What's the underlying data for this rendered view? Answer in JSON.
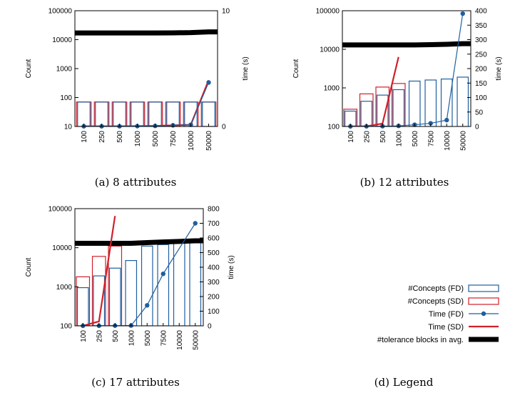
{
  "colors": {
    "fd": "#1f5fa0",
    "sd": "#d0202a",
    "tolerance": "#000000"
  },
  "legend": {
    "caption": "(d) Legend",
    "items": [
      {
        "label": "#Concepts (FD)",
        "kind": "bar-fd"
      },
      {
        "label": "#Concepts (SD)",
        "kind": "bar-sd"
      },
      {
        "label": "Time (FD)",
        "kind": "line-fd"
      },
      {
        "label": "Time (SD)",
        "kind": "line-sd"
      },
      {
        "label": "#tolerance blocks in avg.",
        "kind": "thick"
      }
    ]
  },
  "chart_data": [
    {
      "type": "bar",
      "caption": "(a) 8 attributes",
      "categories": [
        "100",
        "250",
        "500",
        "1000",
        "5000",
        "7500",
        "10000",
        "50000"
      ],
      "ylabel": "Count",
      "y_scale": "log",
      "ylim": [
        10,
        100000
      ],
      "y_ticks": [
        "10",
        "100",
        "1000",
        "10000",
        "100000"
      ],
      "y2label": "time (s)",
      "y2lim": [
        0,
        10
      ],
      "y2_ticks": [
        "0",
        "10"
      ],
      "series": [
        {
          "name": "#Concepts (FD)",
          "axis": "left",
          "values": [
            70,
            70,
            70,
            70,
            70,
            70,
            70,
            70
          ]
        },
        {
          "name": "#Concepts (SD)",
          "axis": "left",
          "values": [
            70,
            70,
            70,
            70,
            70,
            70,
            70,
            70
          ]
        },
        {
          "name": "Time (FD)",
          "axis": "right",
          "values": [
            0.02,
            0.02,
            0.02,
            0.03,
            0.05,
            0.1,
            0.15,
            3.8
          ]
        },
        {
          "name": "Time (SD)",
          "axis": "right",
          "values": [
            0.02,
            0.02,
            0.02,
            0.03,
            0.05,
            0.1,
            0.15,
            4.0
          ]
        },
        {
          "name": "#tolerance blocks in avg.",
          "axis": "left",
          "values": [
            17000,
            17000,
            17000,
            17000,
            17000,
            17200,
            17500,
            18500
          ]
        }
      ]
    },
    {
      "type": "bar",
      "caption": "(b) 12 attributes",
      "categories": [
        "100",
        "250",
        "500",
        "1000",
        "5000",
        "7500",
        "10000",
        "50000"
      ],
      "ylabel": "Count",
      "y_scale": "log",
      "ylim": [
        100,
        100000
      ],
      "y_ticks": [
        "100",
        "1000",
        "10000",
        "100000"
      ],
      "y2label": "time (s)",
      "y2lim": [
        0,
        400
      ],
      "y2_ticks": [
        "0",
        "50",
        "100",
        "150",
        "200",
        "250",
        "300",
        "350",
        "400"
      ],
      "series": [
        {
          "name": "#Concepts (FD)",
          "axis": "left",
          "values": [
            250,
            450,
            650,
            900,
            1500,
            1600,
            1700,
            1900
          ]
        },
        {
          "name": "#Concepts (SD)",
          "axis": "left",
          "values": [
            280,
            700,
            1050,
            1300,
            null,
            null,
            null,
            null
          ]
        },
        {
          "name": "Time (FD)",
          "axis": "right",
          "values": [
            0.3,
            0.5,
            1,
            2,
            6,
            11,
            22,
            390
          ]
        },
        {
          "name": "Time (SD)",
          "axis": "right",
          "values": [
            0.3,
            0.8,
            10,
            240,
            null,
            null,
            null,
            null
          ]
        },
        {
          "name": "#tolerance blocks in avg.",
          "axis": "left",
          "values": [
            13000,
            13000,
            13000,
            13000,
            13000,
            13200,
            13500,
            14000
          ]
        }
      ]
    },
    {
      "type": "bar",
      "caption": "(c) 17 attributes",
      "categories": [
        "100",
        "250",
        "500",
        "1000",
        "5000",
        "7500",
        "10000",
        "50000"
      ],
      "ylabel": "Count",
      "y_scale": "log",
      "ylim": [
        100,
        100000
      ],
      "y_ticks": [
        "100",
        "1000",
        "10000",
        "100000"
      ],
      "y2label": "time (s)",
      "y2lim": [
        0,
        800
      ],
      "y2_ticks": [
        "0",
        "100",
        "200",
        "300",
        "400",
        "500",
        "600",
        "700",
        "800"
      ],
      "series": [
        {
          "name": "#Concepts (FD)",
          "axis": "left",
          "values": [
            950,
            1900,
            3000,
            4700,
            11000,
            12000,
            13000,
            14000
          ]
        },
        {
          "name": "#Concepts (SD)",
          "axis": "left",
          "values": [
            1800,
            6000,
            11000,
            null,
            null,
            null,
            null,
            null
          ]
        },
        {
          "name": "Time (FD)",
          "axis": "right",
          "values": [
            0.2,
            0.5,
            1,
            2,
            140,
            355,
            null,
            700
          ]
        },
        {
          "name": "Time (SD)",
          "axis": "right",
          "values": [
            0.3,
            30,
            750,
            null,
            null,
            null,
            null,
            null
          ]
        },
        {
          "name": "#tolerance blocks in avg.",
          "axis": "left",
          "values": [
            13000,
            13000,
            13000,
            13000,
            13500,
            14000,
            14500,
            15000
          ]
        }
      ]
    }
  ]
}
